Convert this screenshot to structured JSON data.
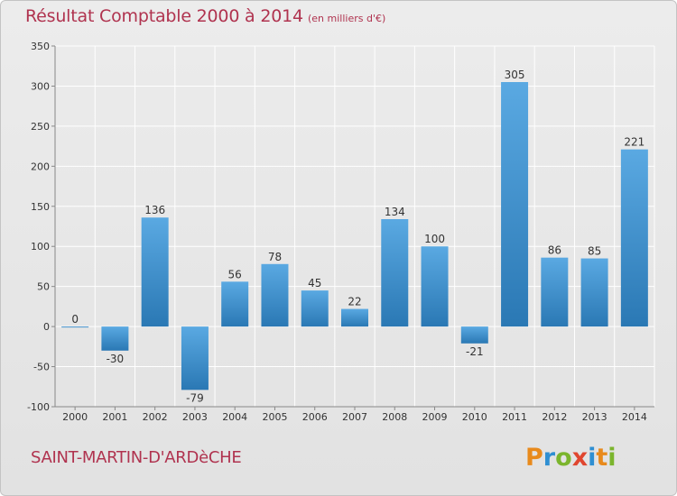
{
  "header": {
    "title": "Résultat Comptable 2000 à 2014",
    "subtitle": "(en milliers d'€)"
  },
  "commune": "SAINT-MARTIN-D'ARDèCHE",
  "brand": {
    "name": "Proxiti"
  },
  "colors": {
    "title": "#b0334f",
    "bar_light": "#5aa9e2",
    "bar_dark": "#2a78b4",
    "grid": "#ffffff",
    "background": "#e8e8e8"
  },
  "chart_data": {
    "type": "bar",
    "categories": [
      "2000",
      "2001",
      "2002",
      "2003",
      "2004",
      "2005",
      "2006",
      "2007",
      "2008",
      "2009",
      "2010",
      "2011",
      "2012",
      "2013",
      "2014"
    ],
    "values": [
      0,
      -30,
      136,
      -79,
      56,
      78,
      45,
      22,
      134,
      100,
      -21,
      305,
      86,
      85,
      221
    ],
    "yticks": [
      "350",
      "300",
      "250",
      "200",
      "150",
      "100",
      "50",
      "0",
      "-50",
      "-100"
    ],
    "ylim": [
      -100,
      350
    ],
    "grid": true
  }
}
